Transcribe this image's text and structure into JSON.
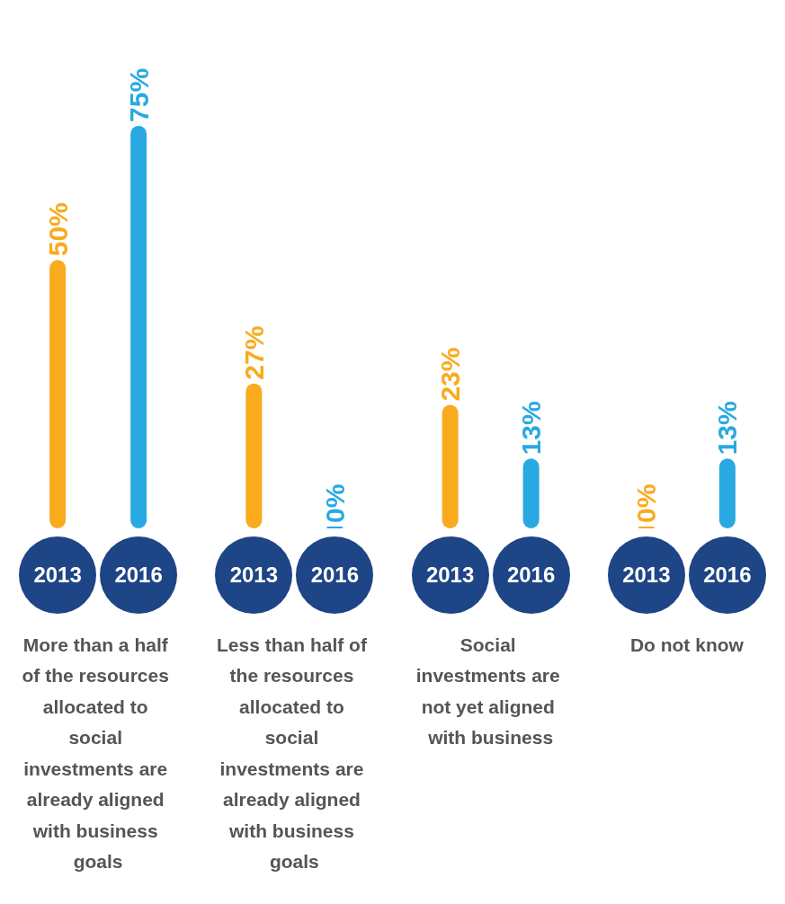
{
  "chart_data": {
    "type": "bar",
    "categories": [
      "More than a half of the resources allocated to social investments are already aligned with business goals",
      "Less than half of the resources allocated to social investments are already aligned with business goals",
      "Social investments are not yet aligned with business",
      "Do not know"
    ],
    "series": [
      {
        "name": "2013",
        "color": "#f9ab1e",
        "values": [
          50,
          27,
          23,
          0
        ],
        "value_labels": [
          "50%",
          "27%",
          "23%",
          "0%"
        ]
      },
      {
        "name": "2016",
        "color": "#29a9e1",
        "values": [
          75,
          0,
          13,
          13
        ],
        "value_labels": [
          "75%",
          "0%",
          "13%",
          "13%"
        ]
      }
    ],
    "grid": false,
    "legend": false
  }
}
